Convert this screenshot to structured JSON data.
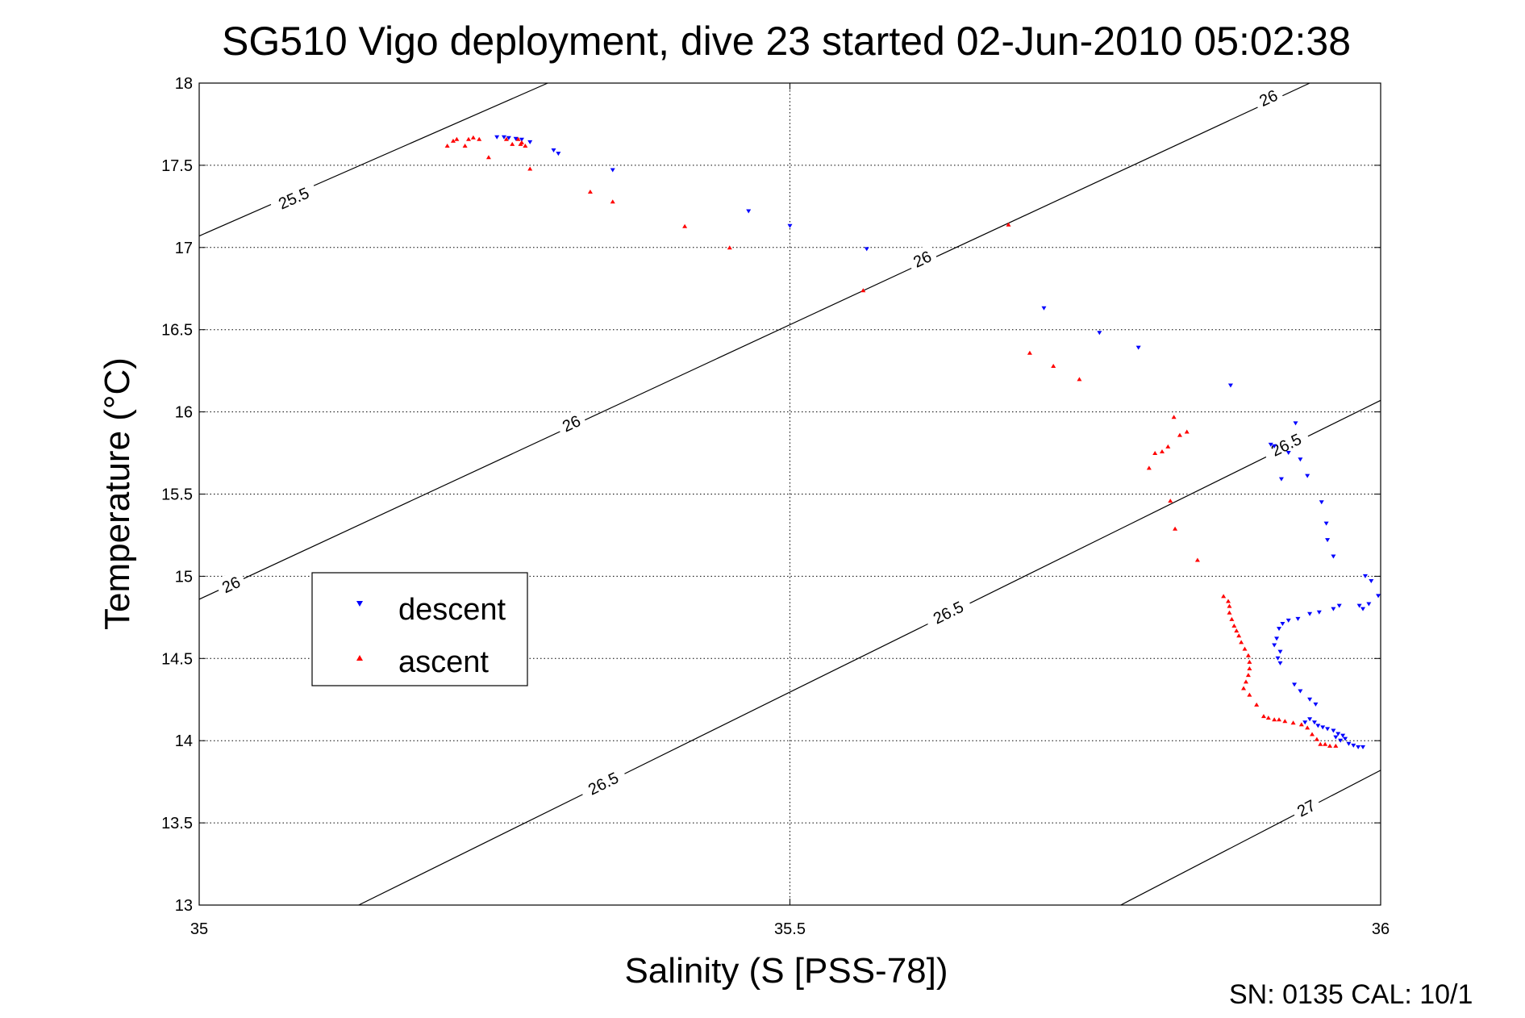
{
  "chart_data": {
    "type": "scatter",
    "title": "SG510 Vigo deployment, dive 23 started 02-Jun-2010 05:02:38",
    "xlabel": "Salinity (S [PSS-78])",
    "ylabel": "Temperature (°C)",
    "xlim": [
      35,
      36
    ],
    "ylim": [
      13,
      18
    ],
    "xticks": [
      35,
      35.5,
      36
    ],
    "xtick_labels": [
      "35",
      "35.5",
      "36"
    ],
    "yticks": [
      13,
      13.5,
      14,
      14.5,
      15,
      15.5,
      16,
      16.5,
      17,
      17.5,
      18
    ],
    "ytick_labels": [
      "13",
      "13.5",
      "14",
      "14.5",
      "15",
      "15.5",
      "16",
      "16.5",
      "17",
      "17.5",
      "18"
    ],
    "grid": true,
    "legend_position": "lower-left",
    "footer": "SN: 0135  CAL: 10/1",
    "series": [
      {
        "name": "descent",
        "marker": "triangle-down",
        "color": "#0000ff",
        "points": [
          [
            35.252,
            17.67
          ],
          [
            35.258,
            17.67
          ],
          [
            35.262,
            17.665
          ],
          [
            35.268,
            17.66
          ],
          [
            35.273,
            17.655
          ],
          [
            35.28,
            17.64
          ],
          [
            35.3,
            17.59
          ],
          [
            35.304,
            17.57
          ],
          [
            35.35,
            17.47
          ],
          [
            35.465,
            17.22
          ],
          [
            35.5,
            17.13
          ],
          [
            35.565,
            16.99
          ],
          [
            35.715,
            16.63
          ],
          [
            35.762,
            16.48
          ],
          [
            35.795,
            16.39
          ],
          [
            35.873,
            16.16
          ],
          [
            35.907,
            15.8
          ],
          [
            35.91,
            15.79
          ],
          [
            35.928,
            15.93
          ],
          [
            35.922,
            15.75
          ],
          [
            35.916,
            15.59
          ],
          [
            35.932,
            15.71
          ],
          [
            35.938,
            15.61
          ],
          [
            35.95,
            15.45
          ],
          [
            35.954,
            15.32
          ],
          [
            35.955,
            15.22
          ],
          [
            35.96,
            15.12
          ],
          [
            35.987,
            15.0
          ],
          [
            35.992,
            14.97
          ],
          [
            35.998,
            14.88
          ],
          [
            35.99,
            14.83
          ],
          [
            35.985,
            14.8
          ],
          [
            35.982,
            14.82
          ],
          [
            35.965,
            14.82
          ],
          [
            35.96,
            14.8
          ],
          [
            35.948,
            14.78
          ],
          [
            35.94,
            14.77
          ],
          [
            35.93,
            14.74
          ],
          [
            35.922,
            14.73
          ],
          [
            35.917,
            14.71
          ],
          [
            35.914,
            14.68
          ],
          [
            35.912,
            14.62
          ],
          [
            35.91,
            14.58
          ],
          [
            35.915,
            14.54
          ],
          [
            35.913,
            14.5
          ],
          [
            35.915,
            14.47
          ],
          [
            35.927,
            14.34
          ],
          [
            35.932,
            14.3
          ],
          [
            35.94,
            14.25
          ],
          [
            35.945,
            14.22
          ],
          [
            35.936,
            14.11
          ],
          [
            35.94,
            14.13
          ],
          [
            35.944,
            14.11
          ],
          [
            35.947,
            14.09
          ],
          [
            35.951,
            14.08
          ],
          [
            35.955,
            14.07
          ],
          [
            35.96,
            14.06
          ],
          [
            35.964,
            14.04
          ],
          [
            35.968,
            14.03
          ],
          [
            35.97,
            14.01
          ],
          [
            35.973,
            13.98
          ],
          [
            35.977,
            13.97
          ],
          [
            35.981,
            13.96
          ],
          [
            35.985,
            13.96
          ],
          [
            35.962,
            14.02
          ],
          [
            35.966,
            14.0
          ]
        ]
      },
      {
        "name": "ascent",
        "marker": "triangle-up",
        "color": "#ff0000",
        "points": [
          [
            35.21,
            17.62
          ],
          [
            35.215,
            17.65
          ],
          [
            35.218,
            17.66
          ],
          [
            35.225,
            17.62
          ],
          [
            35.228,
            17.66
          ],
          [
            35.232,
            17.67
          ],
          [
            35.237,
            17.66
          ],
          [
            35.245,
            17.55
          ],
          [
            35.26,
            17.66
          ],
          [
            35.265,
            17.63
          ],
          [
            35.27,
            17.66
          ],
          [
            35.272,
            17.63
          ],
          [
            35.273,
            17.64
          ],
          [
            35.276,
            17.62
          ],
          [
            35.28,
            17.48
          ],
          [
            35.331,
            17.34
          ],
          [
            35.35,
            17.28
          ],
          [
            35.411,
            17.13
          ],
          [
            35.449,
            17.0
          ],
          [
            35.562,
            16.74
          ],
          [
            35.685,
            17.14
          ],
          [
            35.703,
            16.36
          ],
          [
            35.723,
            16.28
          ],
          [
            35.745,
            16.2
          ],
          [
            35.804,
            15.66
          ],
          [
            35.809,
            15.75
          ],
          [
            35.815,
            15.76
          ],
          [
            35.82,
            15.79
          ],
          [
            35.825,
            15.97
          ],
          [
            35.83,
            15.86
          ],
          [
            35.836,
            15.88
          ],
          [
            35.822,
            15.46
          ],
          [
            35.826,
            15.29
          ],
          [
            35.845,
            15.1
          ],
          [
            35.867,
            14.88
          ],
          [
            35.871,
            14.85
          ],
          [
            35.872,
            14.82
          ],
          [
            35.872,
            14.78
          ],
          [
            35.874,
            14.74
          ],
          [
            35.876,
            14.7
          ],
          [
            35.878,
            14.67
          ],
          [
            35.88,
            14.64
          ],
          [
            35.882,
            14.6
          ],
          [
            35.885,
            14.56
          ],
          [
            35.888,
            14.52
          ],
          [
            35.889,
            14.48
          ],
          [
            35.889,
            14.44
          ],
          [
            35.888,
            14.4
          ],
          [
            35.886,
            14.36
          ],
          [
            35.884,
            14.32
          ],
          [
            35.889,
            14.28
          ],
          [
            35.895,
            14.22
          ],
          [
            35.901,
            14.15
          ],
          [
            35.905,
            14.14
          ],
          [
            35.91,
            14.13
          ],
          [
            35.914,
            14.13
          ],
          [
            35.919,
            14.12
          ],
          [
            35.926,
            14.11
          ],
          [
            35.933,
            14.1
          ],
          [
            35.938,
            14.08
          ],
          [
            35.942,
            14.04
          ],
          [
            35.946,
            14.01
          ],
          [
            35.949,
            13.98
          ],
          [
            35.953,
            13.98
          ],
          [
            35.957,
            13.97
          ],
          [
            35.962,
            13.97
          ]
        ]
      }
    ],
    "contours": [
      {
        "level": "25.5",
        "x": [
          35,
          35.295
        ],
        "y": [
          17.07,
          18
        ],
        "label_x": 35.08,
        "label_y": 17.3
      },
      {
        "level": "26",
        "x": [
          35,
          35.94
        ],
        "y": [
          14.86,
          18
        ],
        "label_x": 35.027,
        "label_y": 14.95
      },
      {
        "level": "26",
        "x": [
          35,
          35.94
        ],
        "y": [
          14.86,
          18
        ],
        "label_x": 35.315,
        "label_y": 15.93
      },
      {
        "level": "26",
        "x": [
          35,
          35.94
        ],
        "y": [
          14.86,
          18
        ],
        "label_x": 35.612,
        "label_y": 16.93
      },
      {
        "level": "26",
        "x": [
          35,
          35.94
        ],
        "y": [
          14.86,
          18
        ],
        "label_x": 35.905,
        "label_y": 17.91
      },
      {
        "level": "26.5",
        "x": [
          35.135,
          36
        ],
        "y": [
          13,
          16.07
        ],
        "label_x": 35.342,
        "label_y": 13.74
      },
      {
        "level": "26.5",
        "x": [
          35.135,
          36
        ],
        "y": [
          13,
          16.07
        ],
        "label_x": 35.634,
        "label_y": 14.78
      },
      {
        "level": "26.5",
        "x": [
          35.135,
          36
        ],
        "y": [
          13,
          16.07
        ],
        "label_x": 35.92,
        "label_y": 15.8
      },
      {
        "level": "27",
        "x": [
          35.78,
          36
        ],
        "y": [
          13,
          13.82
        ],
        "label_x": 35.937,
        "label_y": 13.59
      }
    ]
  }
}
